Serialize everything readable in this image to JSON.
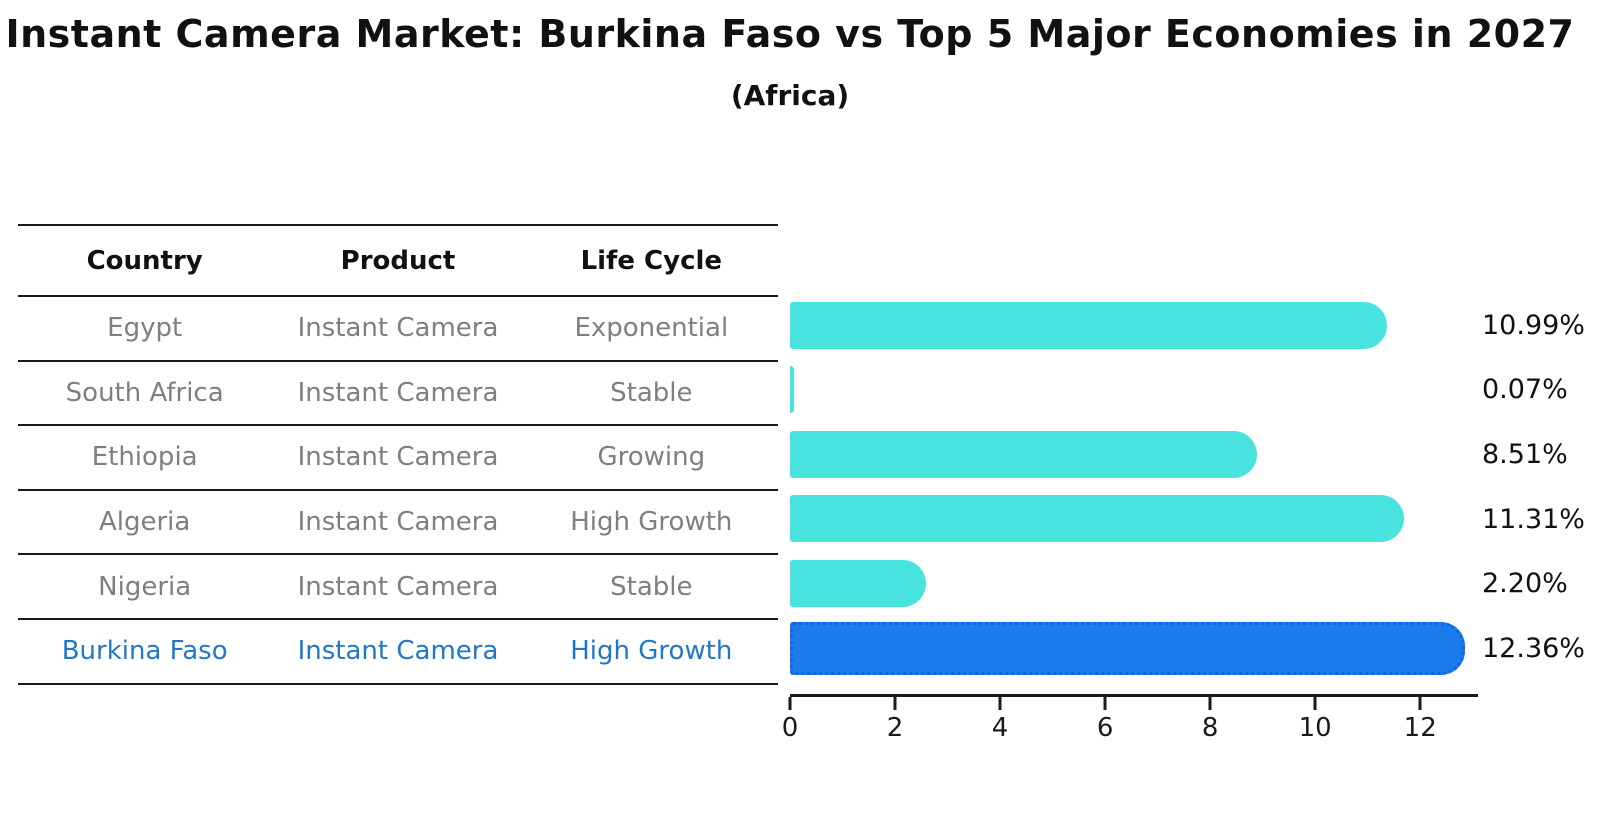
{
  "title": "Instant Camera Market: Burkina Faso vs Top 5 Major Economies in 2027",
  "subtitle": "(Africa)",
  "table": {
    "columns": [
      "Country",
      "Product",
      "Life Cycle"
    ],
    "rows": [
      {
        "country": "Egypt",
        "product": "Instant Camera",
        "life_cycle": "Exponential"
      },
      {
        "country": "South Africa",
        "product": "Instant Camera",
        "life_cycle": "Stable"
      },
      {
        "country": "Ethiopia",
        "product": "Instant Camera",
        "life_cycle": "Growing"
      },
      {
        "country": "Algeria",
        "product": "Instant Camera",
        "life_cycle": "High Growth"
      },
      {
        "country": "Nigeria",
        "product": "Instant Camera",
        "life_cycle": "Stable"
      },
      {
        "country": "Burkina Faso",
        "product": "Instant Camera",
        "life_cycle": "High Growth"
      }
    ],
    "highlight_row": "Burkina Faso"
  },
  "chart_data": {
    "type": "bar",
    "orientation": "horizontal",
    "title": "Instant Camera Market: Burkina Faso vs Top 5 Major Economies in 2027 (Africa)",
    "categories": [
      "Egypt",
      "South Africa",
      "Ethiopia",
      "Algeria",
      "Nigeria",
      "Burkina Faso"
    ],
    "values": [
      10.99,
      0.07,
      8.51,
      11.31,
      2.2,
      12.36
    ],
    "value_labels": [
      "10.99%",
      "0.07%",
      "8.51%",
      "11.31%",
      "2.20%",
      "12.36%"
    ],
    "xlabel": "",
    "ylabel": "",
    "xlim": [
      0,
      13.1
    ],
    "xticks": [
      0,
      2,
      4,
      6,
      8,
      10,
      12
    ],
    "grid": false,
    "legend": false,
    "highlight_index": 5,
    "colors": {
      "bar": "#49e3df",
      "highlight_bar": "#1b7bea",
      "highlight_border": "#1266dd",
      "highlight_text": "#1f78c8",
      "text": "#111111",
      "muted_text": "#7f7f7f"
    }
  }
}
